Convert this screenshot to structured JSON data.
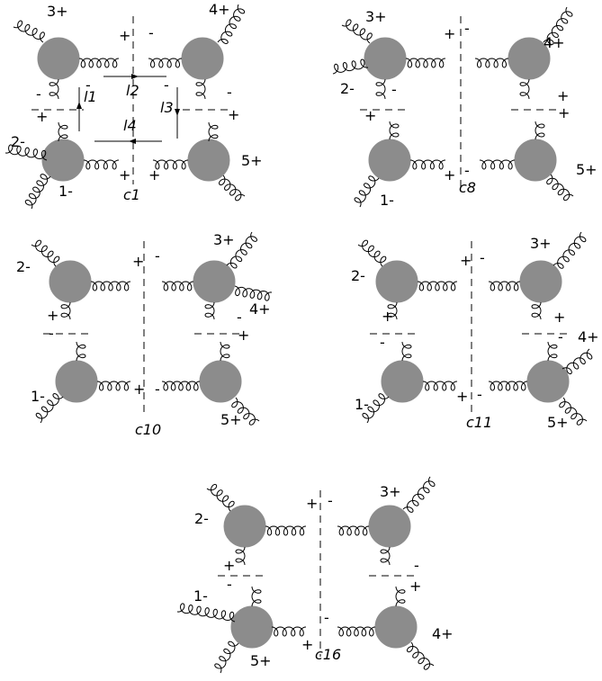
{
  "diagrams": [
    {
      "cut_label": "c1",
      "particles": [
        "1-",
        "2-",
        "3+",
        "4+",
        "5+"
      ],
      "momenta": [
        "l1",
        "l2",
        "l3",
        "l4"
      ],
      "signs": [
        "+",
        "-",
        "-",
        "+",
        "-",
        "+",
        "+",
        "+",
        "-",
        "-"
      ]
    },
    {
      "cut_label": "c8",
      "particles": [
        "1-",
        "2-",
        "3+",
        "4+",
        "5+"
      ],
      "signs": [
        "+",
        "-",
        "-",
        "+",
        "+",
        "+",
        "-",
        "+"
      ]
    },
    {
      "cut_label": "c10",
      "particles": [
        "1-",
        "2-",
        "3+",
        "4+",
        "5+"
      ],
      "signs": [
        "+",
        "-",
        "-",
        "+",
        "+",
        "-",
        "+",
        "-",
        "+",
        "-"
      ]
    },
    {
      "cut_label": "c11",
      "particles": [
        "1-",
        "2-",
        "3+",
        "4+",
        "5+"
      ],
      "signs": [
        "+",
        "-",
        "-",
        "+",
        "+",
        "-",
        "+",
        "-",
        "+",
        "-"
      ]
    },
    {
      "cut_label": "c16",
      "particles": [
        "1-",
        "2-",
        "3+",
        "4+",
        "5+"
      ],
      "signs": [
        "+",
        "-",
        "-",
        "+",
        "-",
        "+",
        "+",
        "-"
      ]
    }
  ],
  "colors": {
    "blob": "#8c8c8c",
    "line": "#000000"
  }
}
